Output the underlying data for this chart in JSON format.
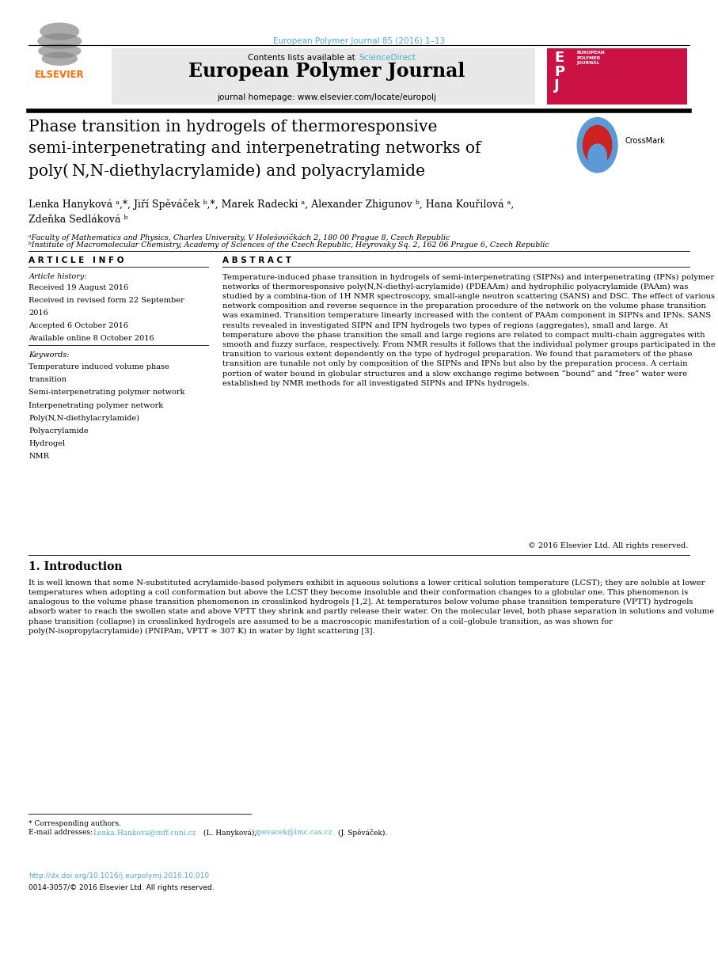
{
  "page_width": 9.07,
  "page_height": 12.38,
  "dpi": 100,
  "background_color": "#ffffff",
  "top_citation": "European Polymer Journal 85 (2016) 1–13",
  "top_citation_color": "#4AAFC5",
  "sciencedirect_color": "#4AAFC5",
  "header_bg_color": "#E8E8E8",
  "journal_name": "European Polymer Journal",
  "journal_homepage": "journal homepage: www.elsevier.com/locate/europolj",
  "doi_color": "#4AAFC5",
  "doi_text": "http://dx.doi.org/10.1016/j.eurpolymj.2016.10.010",
  "issn_text": "0014-3057/© 2016 Elsevier Ltd. All rights reserved."
}
